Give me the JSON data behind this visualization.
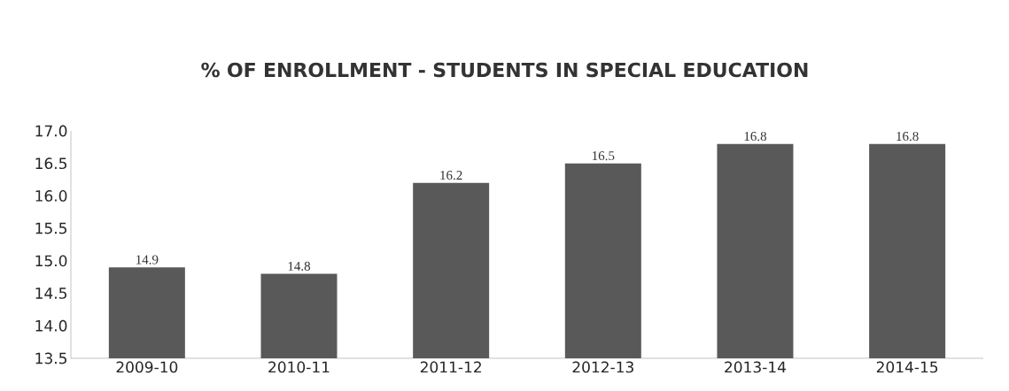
{
  "chart_data": {
    "type": "bar",
    "title": "% OF ENROLLMENT - STUDENTS IN SPECIAL EDUCATION",
    "categories": [
      "2009-10",
      "2010-11",
      "2011-12",
      "2012-13",
      "2013-14",
      "2014-15"
    ],
    "values": [
      14.9,
      14.8,
      16.2,
      16.5,
      16.8,
      16.8
    ],
    "color": "#595959",
    "ylim": [
      13.5,
      17.0
    ],
    "yticks": [
      {
        "value": 13.5,
        "label": "13.5"
      },
      {
        "value": 14.0,
        "label": "14.0"
      },
      {
        "value": 14.5,
        "label": "14.5"
      },
      {
        "value": 15.0,
        "label": "15.0"
      },
      {
        "value": 15.5,
        "label": "15.5"
      },
      {
        "value": 16.0,
        "label": "16.0"
      },
      {
        "value": 16.5,
        "label": "16.5"
      },
      {
        "value": 17.0,
        "label": "17.0"
      }
    ],
    "grid": false,
    "data_labels": true
  }
}
